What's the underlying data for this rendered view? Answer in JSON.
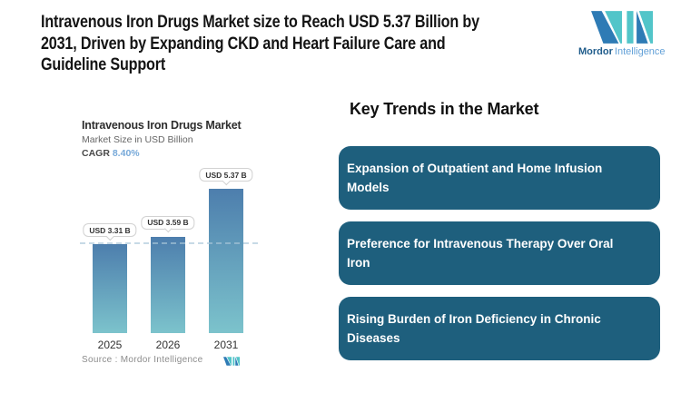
{
  "header": {
    "headline": "Intravenous Iron Drugs Market size to Reach USD 5.37 Billion by 2031, Driven by Expanding CKD and Heart Failure Care and Guideline Support",
    "headline_lines": [
      "Intravenous Iron Drugs Market size to Reach USD 5.37 Billion by",
      "2031, Driven by Expanding CKD and Heart Failure Care and",
      "Guideline Support"
    ]
  },
  "brand": {
    "name_bold": "Mordor",
    "name_light": "Intelligence",
    "logo_blue": "#2e7bb5",
    "logo_teal": "#52c5c9"
  },
  "chart_data": {
    "type": "bar",
    "title": "Intravenous Iron Drugs Market",
    "subtitle": "Market Size in USD Billion",
    "cagr_label": "CAGR",
    "cagr_value": "8.40%",
    "cagr_value_color": "#77a9d9",
    "categories": [
      "2025",
      "2026",
      "2031"
    ],
    "values": [
      3.31,
      3.59,
      5.37
    ],
    "data_labels": [
      "USD 3.31 B",
      "USD 3.59 B",
      "USD 5.37 B"
    ],
    "ylim": [
      0,
      5.37
    ],
    "reference_line": 3.31,
    "grid": false,
    "legend": false,
    "bar_gradient_top": "#4d7ead",
    "bar_gradient_bottom": "#7cc3cc",
    "reference_line_color": "#aac7d9",
    "source": "Source :  Mordor Intelligence"
  },
  "trends": {
    "heading": "Key Trends in the Market",
    "box_color": "#1e5f7d",
    "items": [
      {
        "label": "Expansion of Outpatient and Home Infusion Models",
        "lines": [
          "Expansion of Outpatient and Home Infusion",
          "Models"
        ]
      },
      {
        "label": "Preference for Intravenous Therapy Over Oral Iron",
        "lines": [
          "Preference for Intravenous Therapy Over Oral",
          "Iron"
        ]
      },
      {
        "label": "Rising Burden of Iron Deficiency in Chronic Diseases",
        "lines": [
          "Rising Burden of Iron Deficiency in Chronic",
          "Diseases"
        ]
      }
    ]
  }
}
